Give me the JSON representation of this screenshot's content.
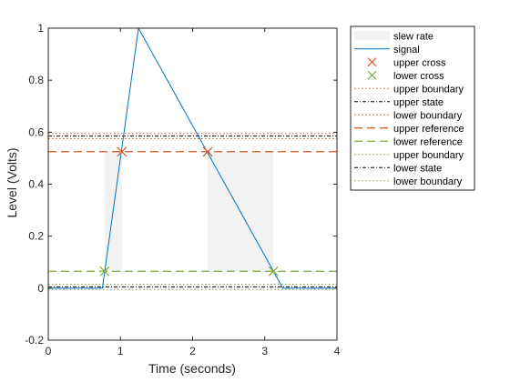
{
  "chart_data": {
    "type": "line",
    "title": "",
    "xlabel": "Time (seconds)",
    "ylabel": "Level (Volts)",
    "xlim": [
      0,
      4
    ],
    "ylim": [
      -0.2,
      1
    ],
    "xticks": [
      0,
      1,
      2,
      3,
      4
    ],
    "yticks": [
      -0.2,
      0,
      0.2,
      0.4,
      0.6,
      0.8,
      1
    ],
    "xtick_labels": [
      "0",
      "1",
      "2",
      "3",
      "4"
    ],
    "ytick_labels": [
      "-0.2",
      "0",
      "0.2",
      "0.4",
      "0.6",
      "0.8",
      "1"
    ],
    "grid": false,
    "legend_position": "top-right",
    "slew_regions": [
      {
        "x": [
          0.78,
          1.02
        ],
        "y": [
          0.065,
          0.525
        ]
      },
      {
        "x": [
          2.21,
          3.12
        ],
        "y": [
          0.065,
          0.525
        ]
      }
    ],
    "signal": {
      "name": "signal",
      "color": "#0072BD",
      "x": [
        0,
        0.75,
        1.25,
        3.25,
        4
      ],
      "y": [
        0,
        0,
        1,
        0,
        0
      ]
    },
    "upper_cross": {
      "name": "upper cross",
      "color": "#D95319",
      "x": [
        1.02,
        2.21
      ],
      "y": [
        0.525,
        0.525
      ]
    },
    "lower_cross": {
      "name": "lower cross",
      "color": "#77AC30",
      "x": [
        0.78,
        3.12
      ],
      "y": [
        0.065,
        0.065
      ]
    },
    "hlines": [
      {
        "name": "upper boundary",
        "y": 0.595,
        "color": "#D95319",
        "dash": "1.5 2.5"
      },
      {
        "name": "upper state",
        "y": 0.585,
        "color": "#000000",
        "dash": "4 2 1 2"
      },
      {
        "name": "lower boundary",
        "y": 0.575,
        "color": "#D95319",
        "dash": "1.5 2.5"
      },
      {
        "name": "upper reference",
        "y": 0.525,
        "color": "#D95319",
        "dash": "9 5"
      },
      {
        "name": "lower reference",
        "y": 0.065,
        "color": "#77AC30",
        "dash": "9 5"
      },
      {
        "name": "upper boundary",
        "y": 0.015,
        "color": "#77AC30",
        "dash": "1.5 2.5"
      },
      {
        "name": "lower state",
        "y": 0.005,
        "color": "#000000",
        "dash": "4 2 1 2"
      },
      {
        "name": "lower boundary",
        "y": -0.005,
        "color": "#77AC30",
        "dash": "1.5 2.5"
      }
    ],
    "legend": [
      {
        "label": "slew rate",
        "kind": "patch",
        "color": "#F2F2F2"
      },
      {
        "label": "signal",
        "kind": "line",
        "color": "#0072BD",
        "dash": ""
      },
      {
        "label": "upper cross",
        "kind": "marker",
        "color": "#D95319"
      },
      {
        "label": "lower cross",
        "kind": "marker",
        "color": "#77AC30"
      },
      {
        "label": "upper boundary",
        "kind": "line",
        "color": "#D95319",
        "dash": "1.5 2.5"
      },
      {
        "label": "upper state",
        "kind": "line",
        "color": "#000000",
        "dash": "4 2 1 2"
      },
      {
        "label": "lower boundary",
        "kind": "line",
        "color": "#D95319",
        "dash": "1.5 2.5"
      },
      {
        "label": "upper reference",
        "kind": "line",
        "color": "#D95319",
        "dash": "9 5"
      },
      {
        "label": "lower reference",
        "kind": "line",
        "color": "#77AC30",
        "dash": "9 5"
      },
      {
        "label": "upper boundary",
        "kind": "line",
        "color": "#77AC30",
        "dash": "1.5 2.5"
      },
      {
        "label": "lower state",
        "kind": "line",
        "color": "#000000",
        "dash": "4 2 1 2"
      },
      {
        "label": "lower boundary",
        "kind": "line",
        "color": "#77AC30",
        "dash": "1.5 2.5"
      }
    ]
  }
}
